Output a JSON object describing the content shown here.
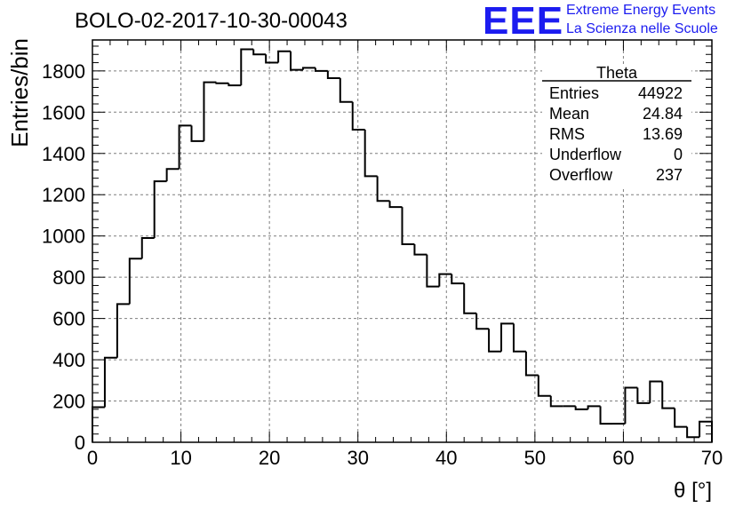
{
  "title": "BOLO-02-2017-10-30-00043",
  "logo": {
    "mark": "EEE",
    "line1": "Extreme Energy Events",
    "line2": "La Scienza nelle Scuole"
  },
  "colors": {
    "logo": "#1c1cf0",
    "histogram": "#000000",
    "grid": "#7f7f7f"
  },
  "chart_data": {
    "type": "histogram",
    "xlabel": "θ [°]",
    "ylabel": "Entries/bin",
    "xlim": [
      0,
      70
    ],
    "ylim": [
      0,
      1950
    ],
    "grid": true,
    "xticks": [
      0,
      10,
      20,
      30,
      40,
      50,
      60,
      70
    ],
    "yticks": [
      0,
      200,
      400,
      600,
      800,
      1000,
      1200,
      1400,
      1600,
      1800
    ],
    "bin_width": 1.4,
    "bin_start": 0,
    "values": [
      170,
      410,
      670,
      890,
      990,
      1265,
      1325,
      1535,
      1460,
      1745,
      1740,
      1730,
      1905,
      1880,
      1840,
      1895,
      1805,
      1815,
      1800,
      1765,
      1650,
      1515,
      1290,
      1170,
      1140,
      960,
      910,
      755,
      815,
      770,
      625,
      550,
      440,
      575,
      440,
      325,
      225,
      175,
      175,
      160,
      175,
      90,
      90,
      265,
      190,
      295,
      165,
      75,
      25,
      100
    ],
    "stats_box": {
      "title": "Theta",
      "rows": [
        {
          "label": "Entries",
          "value": "44922"
        },
        {
          "label": "Mean",
          "value": "24.84"
        },
        {
          "label": "RMS",
          "value": "13.69"
        },
        {
          "label": "Underflow",
          "value": "0"
        },
        {
          "label": "Overflow",
          "value": "237"
        }
      ]
    }
  }
}
